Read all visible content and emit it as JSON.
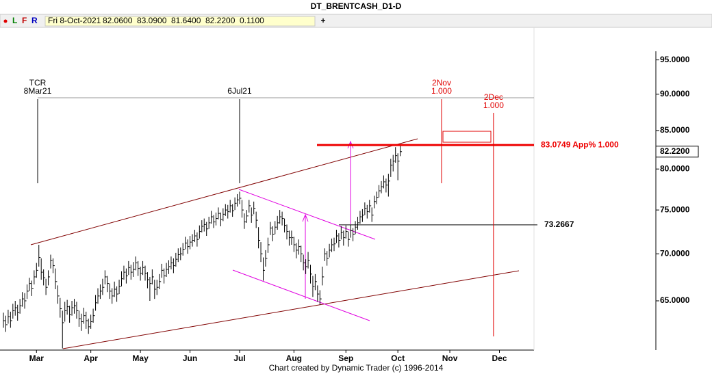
{
  "header": {
    "title": "DT_BRENTCASH_D1-D",
    "toolbar": [
      "L",
      "F",
      "R"
    ],
    "fields": [
      "Fri 8-Oct-2021",
      "82.0600",
      "83.0900",
      "81.6400",
      "82.2200",
      "0.1100"
    ],
    "footer": "Chart created by Dynamic Trader  (c)  1996-2014"
  },
  "chart_data": {
    "type": "ohlc",
    "log_scale": true,
    "bar_color": "#000000",
    "xlim": [
      -1.45,
      224.64
    ],
    "ylim": [
      60.15,
      96.3
    ],
    "xticks": [
      {
        "value": 14,
        "label": "Mar"
      },
      {
        "value": 37,
        "label": "Apr"
      },
      {
        "value": 58,
        "label": "May"
      },
      {
        "value": 79,
        "label": "Jun"
      },
      {
        "value": 100,
        "label": "Jul"
      },
      {
        "value": 123,
        "label": "Aug"
      },
      {
        "value": 145,
        "label": "Sep"
      },
      {
        "value": 167,
        "label": "Oct"
      },
      {
        "value": 189,
        "label": "Nov"
      },
      {
        "value": 210,
        "label": "Dec"
      }
    ],
    "yticks": [
      {
        "value": 65,
        "label": "65.0000"
      },
      {
        "value": 70,
        "label": "70.0000"
      },
      {
        "value": 75,
        "label": "75.0000"
      },
      {
        "value": 80,
        "label": "80.0000"
      },
      {
        "value": 85,
        "label": "85.0000"
      },
      {
        "value": 90,
        "label": "90.0000"
      },
      {
        "value": 95,
        "label": "95.0000"
      }
    ],
    "high": [
      63.8,
      63.5,
      64.1,
      63.9,
      64.7,
      65.0,
      64.6,
      65.2,
      65.9,
      65.8,
      66.7,
      67.4,
      67.1,
      68.2,
      69.0,
      71.0,
      69.5,
      68.3,
      67.3,
      68.2,
      69.9,
      69.5,
      68.4,
      66.6,
      65.3,
      64.0,
      64.9,
      65.1,
      64.5,
      65.0,
      65.2,
      64.9,
      64.0,
      63.7,
      64.3,
      63.9,
      63.2,
      63.6,
      64.2,
      65.6,
      66.3,
      66.7,
      67.3,
      68.2,
      67.6,
      66.8,
      66.3,
      67.0,
      66.5,
      67.2,
      68.1,
      68.7,
      68.4,
      69.2,
      68.8,
      69.1,
      69.7,
      69.2,
      68.6,
      69.2,
      68.7,
      68.0,
      67.5,
      68.3,
      67.2,
      67.2,
      67.8,
      68.9,
      68.4,
      69.0,
      69.3,
      69.7,
      69.5,
      70.1,
      70.6,
      70.7,
      71.2,
      71.9,
      71.6,
      72.0,
      72.2,
      72.7,
      72.4,
      73.2,
      73.8,
      74.0,
      73.6,
      74.2,
      74.9,
      74.4,
      74.7,
      75.3,
      74.7,
      75.2,
      75.7,
      75.6,
      76.2,
      75.7,
      76.5,
      76.9,
      77.2,
      76.2,
      74.6,
      75.0,
      76.2,
      75.3,
      76.0,
      74.8,
      73.0,
      71.3,
      69.6,
      70.4,
      71.8,
      73.6,
      73.1,
      73.7,
      74.3,
      75.0,
      74.8,
      74.0,
      73.3,
      72.6,
      72.6,
      71.9,
      71.2,
      71.6,
      70.9,
      69.9,
      69.4,
      70.2,
      68.8,
      67.6,
      67.8,
      66.6,
      66.1,
      68.6,
      70.6,
      70.3,
      71.1,
      71.7,
      71.8,
      72.7,
      72.3,
      73.1,
      72.6,
      73.2,
      72.5,
      73.3,
      72.9,
      73.7,
      74.2,
      74.9,
      75.1,
      75.9,
      75.6,
      76.2,
      75.3,
      76.7,
      77.2,
      78.0,
      78.5,
      79.2,
      78.8,
      79.4,
      81.3,
      81.8,
      82.8,
      82.0,
      83.09
    ],
    "low": [
      62.3,
      61.9,
      62.7,
      62.3,
      63.2,
      63.5,
      63.0,
      63.7,
      64.4,
      64.2,
      65.2,
      66.0,
      65.5,
      66.7,
      67.4,
      68.6,
      67.2,
      66.6,
      65.6,
      66.6,
      68.4,
      67.9,
      66.2,
      64.7,
      63.3,
      60.3,
      62.9,
      63.6,
      62.8,
      63.5,
      63.7,
      63.2,
      62.4,
      62.0,
      62.7,
      62.2,
      61.7,
      62.2,
      62.8,
      64.0,
      64.7,
      65.2,
      65.6,
      66.7,
      65.9,
      65.2,
      64.7,
      65.4,
      64.9,
      65.7,
      66.5,
      67.2,
      66.8,
      67.7,
      67.2,
      67.5,
      68.2,
      67.6,
      67.1,
      67.7,
      67.1,
      66.3,
      65.0,
      66.7,
      65.2,
      65.6,
      66.2,
      67.4,
      66.8,
      67.5,
      67.8,
      68.3,
      67.9,
      68.6,
      69.1,
      69.3,
      69.8,
      70.5,
      70.0,
      70.5,
      70.8,
      71.3,
      70.8,
      71.7,
      72.4,
      72.5,
      72.0,
      72.8,
      73.4,
      72.9,
      73.2,
      73.9,
      73.1,
      73.7,
      74.3,
      74.0,
      74.7,
      74.2,
      75.0,
      75.4,
      75.7,
      74.1,
      72.8,
      73.5,
      74.7,
      73.5,
      74.5,
      72.9,
      70.6,
      69.1,
      67.1,
      68.6,
      70.1,
      72.1,
      71.4,
      72.2,
      72.7,
      73.4,
      73.2,
      72.4,
      71.6,
      70.9,
      71.0,
      70.2,
      69.5,
      69.9,
      69.1,
      68.2,
      67.8,
      68.4,
      66.8,
      65.4,
      66.1,
      64.9,
      64.6,
      66.6,
      69.2,
      68.7,
      69.6,
      70.2,
      70.3,
      71.2,
      70.7,
      71.6,
      70.9,
      71.7,
      70.8,
      71.8,
      71.4,
      72.2,
      72.7,
      73.4,
      73.6,
      74.4,
      74.0,
      74.7,
      73.6,
      75.2,
      75.7,
      76.5,
      77.0,
      77.6,
      77.1,
      76.6,
      79.0,
      79.7,
      80.8,
      78.6,
      81.64
    ],
    "close": [
      63.0,
      62.6,
      63.4,
      63.0,
      64.0,
      64.3,
      63.8,
      64.5,
      65.2,
      65.0,
      66.0,
      66.8,
      66.3,
      67.5,
      68.2,
      69.6,
      68.0,
      67.4,
      66.4,
      67.5,
      69.3,
      68.7,
      67.0,
      65.5,
      64.2,
      62.8,
      64.0,
      64.4,
      63.6,
      64.3,
      64.5,
      64.0,
      63.2,
      62.9,
      63.5,
      63.0,
      62.4,
      62.9,
      63.5,
      64.8,
      65.5,
      66.0,
      66.4,
      67.5,
      66.8,
      66.0,
      65.5,
      66.2,
      65.7,
      66.5,
      67.3,
      68.0,
      67.6,
      68.5,
      68.0,
      68.3,
      69.0,
      68.4,
      67.9,
      68.5,
      67.9,
      67.2,
      66.8,
      67.5,
      66.2,
      66.4,
      67.0,
      68.2,
      67.6,
      68.3,
      68.6,
      69.0,
      68.7,
      69.4,
      69.9,
      70.0,
      70.5,
      71.2,
      70.8,
      71.3,
      71.5,
      72.0,
      71.6,
      72.5,
      73.1,
      73.3,
      72.8,
      73.5,
      74.2,
      73.6,
      74.0,
      74.6,
      73.9,
      74.5,
      75.0,
      74.8,
      75.5,
      74.9,
      75.8,
      76.2,
      76.4,
      75.0,
      73.6,
      74.3,
      75.5,
      74.4,
      75.2,
      73.8,
      71.5,
      70.0,
      68.2,
      69.5,
      71.0,
      72.9,
      72.2,
      73.0,
      73.5,
      74.2,
      74.0,
      73.2,
      72.5,
      71.8,
      71.8,
      71.0,
      70.4,
      70.8,
      70.0,
      69.0,
      68.6,
      69.3,
      67.8,
      66.5,
      67.0,
      65.7,
      65.2,
      67.5,
      70.0,
      69.5,
      70.4,
      71.0,
      71.1,
      72.0,
      71.5,
      72.4,
      71.8,
      72.5,
      71.6,
      72.6,
      72.2,
      73.0,
      73.5,
      74.2,
      74.4,
      75.2,
      74.8,
      75.5,
      74.4,
      76.0,
      76.5,
      77.3,
      77.8,
      78.4,
      78.0,
      78.5,
      80.5,
      81.0,
      81.7,
      81.0,
      82.22
    ],
    "last_label": "82.2200",
    "levels": [
      {
        "value": 83.0749,
        "label": "83.0749 App% 1.000",
        "color": "#ee0000"
      },
      {
        "value": 73.2667,
        "label": "73.2667",
        "color": "#000000"
      }
    ],
    "markers": [
      {
        "x": 14.5,
        "lines": [
          "TCR",
          "8Mar21"
        ],
        "color": "#000000"
      },
      {
        "x": 100,
        "lines": [
          "6Jul21"
        ],
        "color": "#000000"
      },
      {
        "x": 185.5,
        "lines": [
          "2Nov",
          "1.000"
        ],
        "color": "#e00000"
      },
      {
        "x": 207.5,
        "lines": [
          "2Dec",
          "1.000"
        ],
        "color": "#e00000"
      }
    ]
  }
}
